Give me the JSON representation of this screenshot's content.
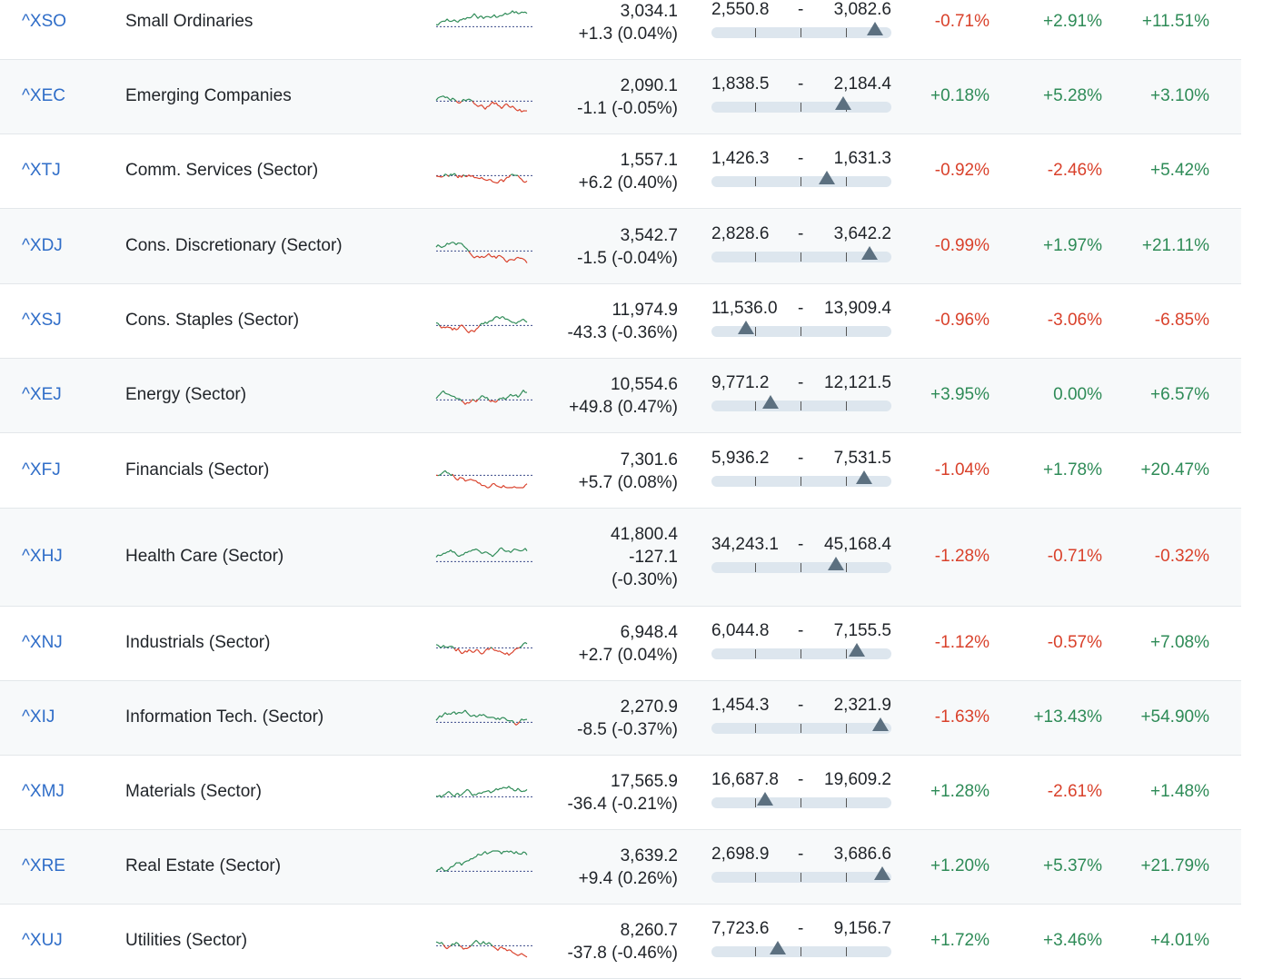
{
  "rows": [
    {
      "code": "^XSO",
      "name": "Small Ordinaries",
      "price": "3,034.1",
      "change": "+1.3 (0.04%)",
      "change_dir": "pos",
      "low": "2,550.8",
      "high": "3,082.6",
      "marker": 0.91,
      "d1": "-0.71%",
      "d1_dir": "neg",
      "d2": "+2.91%",
      "d2_dir": "pos",
      "d3": "+11.51%",
      "d3_dir": "pos"
    },
    {
      "code": "^XEC",
      "name": "Emerging Companies",
      "price": "2,090.1",
      "change": "-1.1 (-0.05%)",
      "change_dir": "neg",
      "low": "1,838.5",
      "high": "2,184.4",
      "marker": 0.73,
      "d1": "+0.18%",
      "d1_dir": "pos",
      "d2": "+5.28%",
      "d2_dir": "pos",
      "d3": "+3.10%",
      "d3_dir": "pos"
    },
    {
      "code": "^XTJ",
      "name": "Comm. Services (Sector)",
      "price": "1,557.1",
      "change": "+6.2 (0.40%)",
      "change_dir": "pos",
      "low": "1,426.3",
      "high": "1,631.3",
      "marker": 0.64,
      "d1": "-0.92%",
      "d1_dir": "neg",
      "d2": "-2.46%",
      "d2_dir": "neg",
      "d3": "+5.42%",
      "d3_dir": "pos"
    },
    {
      "code": "^XDJ",
      "name": "Cons. Discretionary (Sector)",
      "price": "3,542.7",
      "change": "-1.5 (-0.04%)",
      "change_dir": "neg",
      "low": "2,828.6",
      "high": "3,642.2",
      "marker": 0.88,
      "d1": "-0.99%",
      "d1_dir": "neg",
      "d2": "+1.97%",
      "d2_dir": "pos",
      "d3": "+21.11%",
      "d3_dir": "pos"
    },
    {
      "code": "^XSJ",
      "name": "Cons. Staples (Sector)",
      "price": "11,974.9",
      "change": "-43.3 (-0.36%)",
      "change_dir": "neg",
      "low": "11,536.0",
      "high": "13,909.4",
      "marker": 0.19,
      "d1": "-0.96%",
      "d1_dir": "neg",
      "d2": "-3.06%",
      "d2_dir": "neg",
      "d3": "-6.85%",
      "d3_dir": "neg"
    },
    {
      "code": "^XEJ",
      "name": "Energy (Sector)",
      "price": "10,554.6",
      "change": "+49.8 (0.47%)",
      "change_dir": "pos",
      "low": "9,771.2",
      "high": "12,121.5",
      "marker": 0.33,
      "d1": "+3.95%",
      "d1_dir": "pos",
      "d2": "0.00%",
      "d2_dir": "pos",
      "d3": "+6.57%",
      "d3_dir": "pos"
    },
    {
      "code": "^XFJ",
      "name": "Financials (Sector)",
      "price": "7,301.6",
      "change": "+5.7 (0.08%)",
      "change_dir": "pos",
      "low": "5,936.2",
      "high": "7,531.5",
      "marker": 0.85,
      "d1": "-1.04%",
      "d1_dir": "neg",
      "d2": "+1.78%",
      "d2_dir": "pos",
      "d3": "+20.47%",
      "d3_dir": "pos"
    },
    {
      "code": "^XHJ",
      "name": "Health Care (Sector)",
      "price": "41,800.4",
      "change1": "-127.1",
      "change2": "(-0.30%)",
      "change_dir": "neg",
      "low": "34,243.1",
      "high": "45,168.4",
      "marker": 0.69,
      "d1": "-1.28%",
      "d1_dir": "neg",
      "d2": "-0.71%",
      "d2_dir": "neg",
      "d3": "-0.32%",
      "d3_dir": "neg"
    },
    {
      "code": "^XNJ",
      "name": "Industrials (Sector)",
      "price": "6,948.4",
      "change": "+2.7 (0.04%)",
      "change_dir": "pos",
      "low": "6,044.8",
      "high": "7,155.5",
      "marker": 0.81,
      "d1": "-1.12%",
      "d1_dir": "neg",
      "d2": "-0.57%",
      "d2_dir": "neg",
      "d3": "+7.08%",
      "d3_dir": "pos"
    },
    {
      "code": "^XIJ",
      "name": "Information Tech. (Sector)",
      "price": "2,270.9",
      "change": "-8.5 (-0.37%)",
      "change_dir": "neg",
      "low": "1,454.3",
      "high": "2,321.9",
      "marker": 0.94,
      "d1": "-1.63%",
      "d1_dir": "neg",
      "d2": "+13.43%",
      "d2_dir": "pos",
      "d3": "+54.90%",
      "d3_dir": "pos"
    },
    {
      "code": "^XMJ",
      "name": "Materials (Sector)",
      "price": "17,565.9",
      "change": "-36.4 (-0.21%)",
      "change_dir": "neg",
      "low": "16,687.8",
      "high": "19,609.2",
      "marker": 0.3,
      "d1": "+1.28%",
      "d1_dir": "pos",
      "d2": "-2.61%",
      "d2_dir": "neg",
      "d3": "+1.48%",
      "d3_dir": "pos"
    },
    {
      "code": "^XRE",
      "name": "Real Estate (Sector)",
      "price": "3,639.2",
      "change": "+9.4 (0.26%)",
      "change_dir": "pos",
      "low": "2,698.9",
      "high": "3,686.6",
      "marker": 0.95,
      "d1": "+1.20%",
      "d1_dir": "pos",
      "d2": "+5.37%",
      "d2_dir": "pos",
      "d3": "+21.79%",
      "d3_dir": "pos"
    },
    {
      "code": "^XUJ",
      "name": "Utilities (Sector)",
      "price": "8,260.7",
      "change": "-37.8 (-0.46%)",
      "change_dir": "neg",
      "low": "7,723.6",
      "high": "9,156.7",
      "marker": 0.37,
      "d1": "+1.72%",
      "d1_dir": "pos",
      "d2": "+3.46%",
      "d2_dir": "pos",
      "d3": "+4.01%",
      "d3_dir": "pos"
    }
  ],
  "colors": {
    "positive": "#2e8b57",
    "negative": "#d9412b",
    "link": "#2f6dc8",
    "marker": "#5c7080",
    "track": "#dde6ee",
    "baseline": "#3b4a8a"
  }
}
